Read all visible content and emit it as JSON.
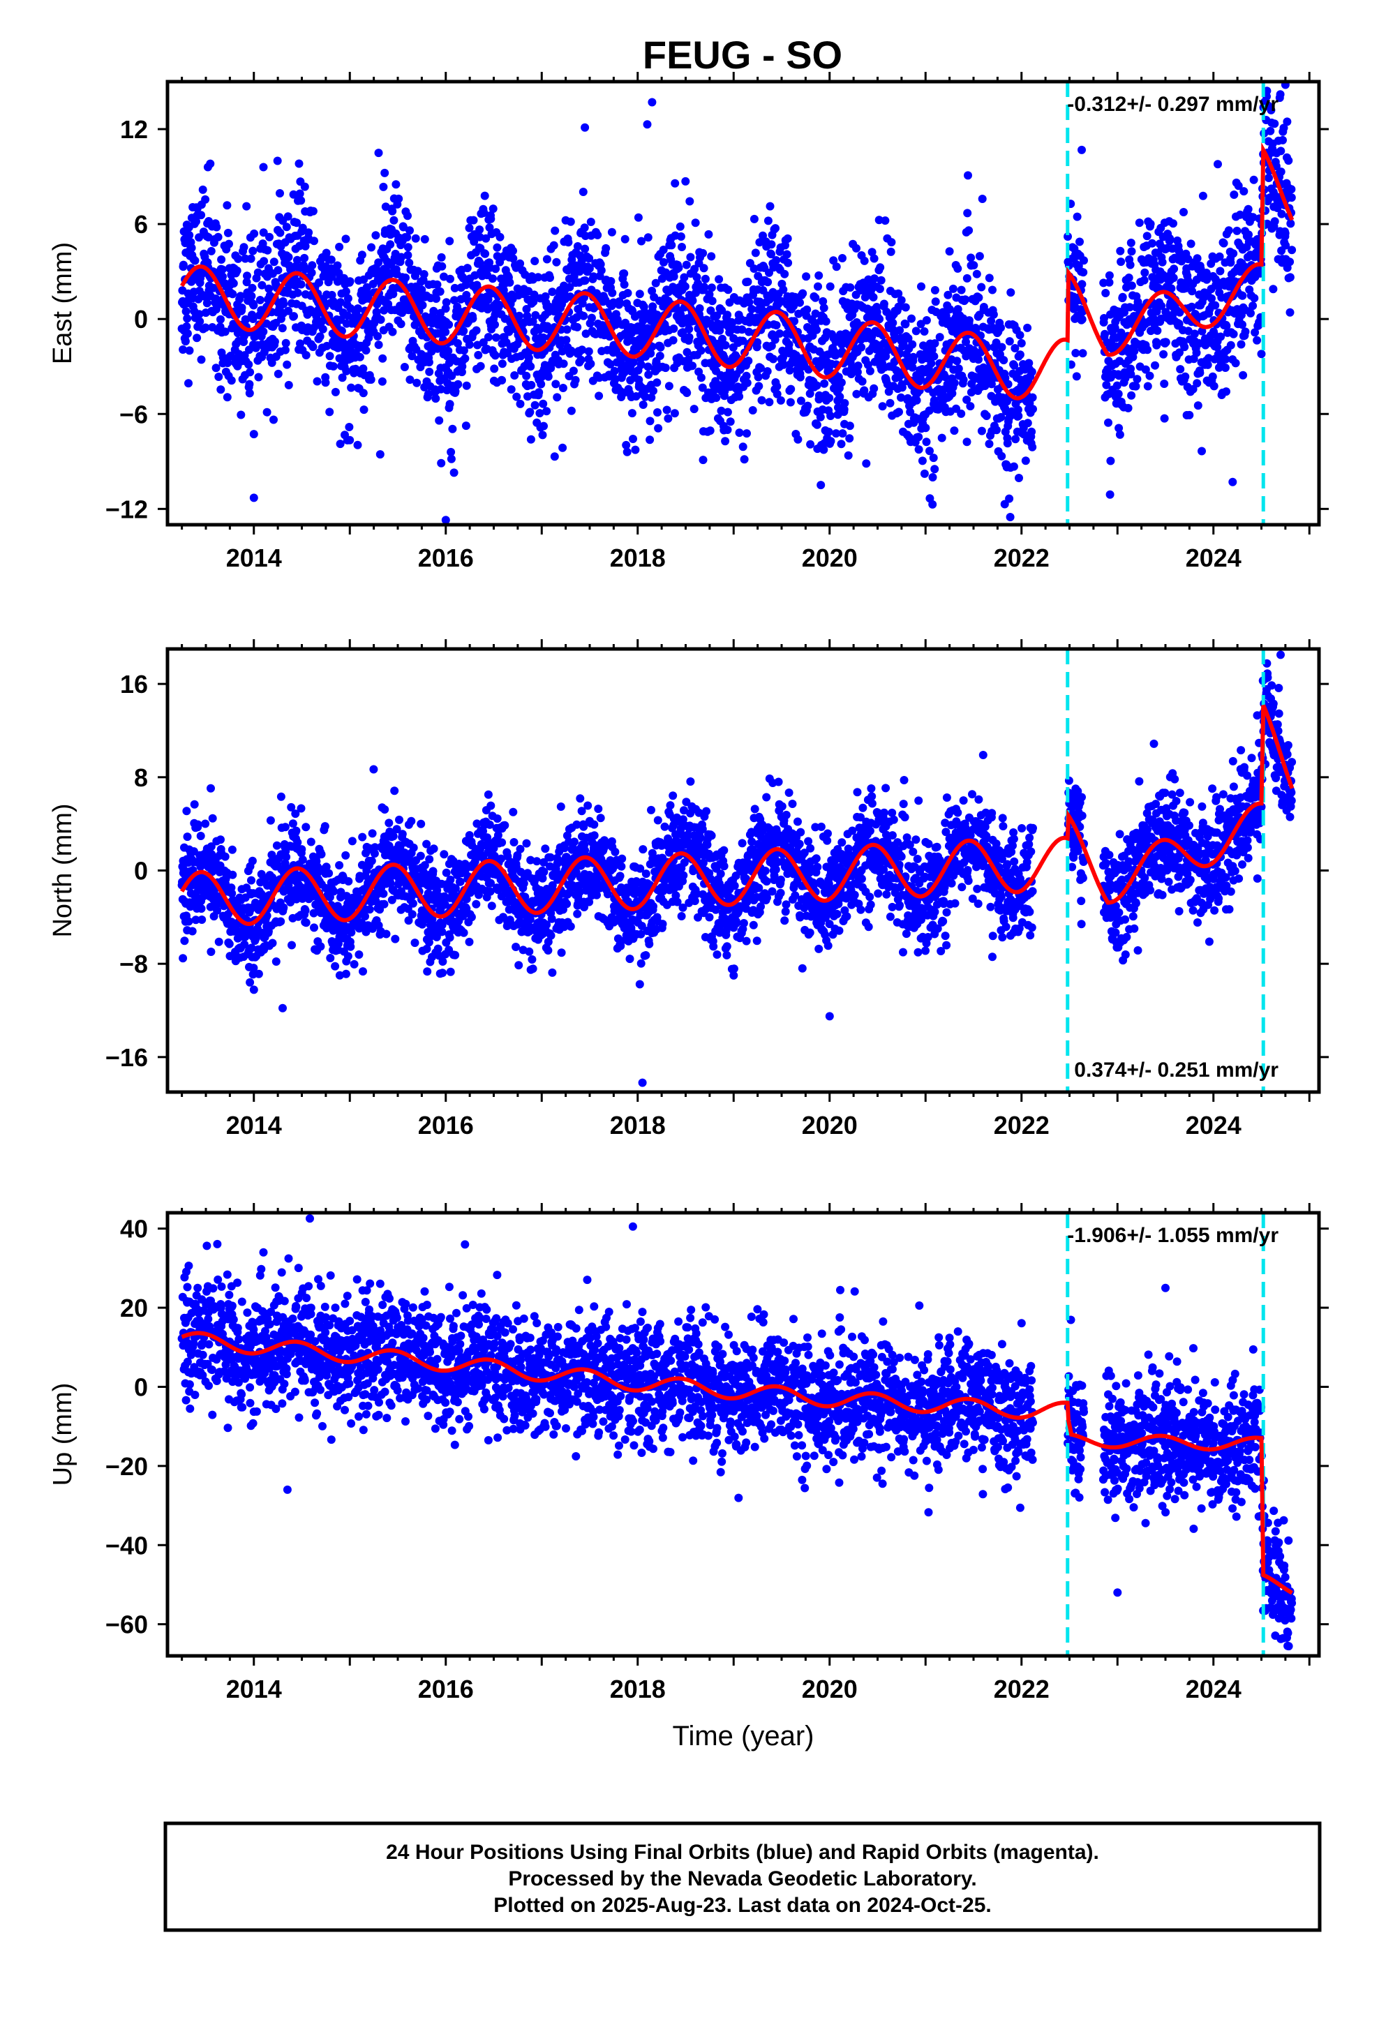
{
  "title": "FEUG - SO",
  "footer": {
    "lines": [
      "24 Hour Positions Using Final Orbits (blue) and Rapid Orbits (magenta).",
      "Processed by the Nevada Geodetic Laboratory.",
      "Plotted on 2025-Aug-23. Last data on 2024-Oct-25."
    ]
  },
  "colors": {
    "points": "#0000ff",
    "model": "#ff0000",
    "steps": "#00e5ee",
    "axes": "#000000"
  },
  "chart_data": [
    {
      "type": "scatter",
      "name": "east",
      "ylabel": "East (mm)",
      "rate_label": "-0.312+/- 0.297 mm/yr",
      "rate_position": "top-right",
      "xlim": [
        2013.1,
        2025.1
      ],
      "ylim": [
        -13,
        15
      ],
      "yticks": [
        -12,
        -6,
        0,
        6,
        12
      ],
      "ytick_labels": [
        "−12",
        "−6",
        "0",
        "6",
        "12"
      ],
      "xticks": [
        2014,
        2016,
        2018,
        2020,
        2022,
        2024
      ],
      "xtick_labels": [
        "2014",
        "2016",
        "2018",
        "2020",
        "2022",
        "2024"
      ],
      "data_start": 2013.25,
      "data_end": 2024.82,
      "gaps": [
        [
          2022.12,
          2022.48
        ],
        [
          2022.65,
          2022.85
        ]
      ],
      "trend": [
        [
          2013.25,
          1.5
        ],
        [
          2018.0,
          -0.5
        ],
        [
          2022.1,
          -3.2
        ]
      ],
      "seasonal_amplitude": 1.9,
      "scatter_sigma": 2.6,
      "post_step_model": [
        [
          2022.48,
          1.5
        ],
        [
          2022.9,
          -0.8
        ],
        [
          2024.5,
          2.0
        ],
        [
          2024.52,
          9.3
        ],
        [
          2024.82,
          7.3
        ]
      ],
      "offset_epochs": [
        2022.48,
        2024.52
      ],
      "outliers": [
        [
          2014.0,
          -11.3
        ],
        [
          2016.0,
          -12.7
        ],
        [
          2018.15,
          13.7
        ],
        [
          2018.1,
          12.3
        ],
        [
          2014.1,
          9.6
        ],
        [
          2015.3,
          10.5
        ],
        [
          2017.45,
          12.1
        ],
        [
          2024.75,
          14.8
        ],
        [
          2024.2,
          -10.3
        ]
      ]
    },
    {
      "type": "scatter",
      "name": "north",
      "ylabel": "North (mm)",
      "rate_label": "0.374+/- 0.251 mm/yr",
      "rate_position": "bottom-right",
      "xlim": [
        2013.1,
        2025.1
      ],
      "ylim": [
        -19,
        19
      ],
      "yticks": [
        -16,
        -8,
        0,
        8,
        16
      ],
      "ytick_labels": [
        "−16",
        "−8",
        "0",
        "8",
        "16"
      ],
      "xticks": [
        2014,
        2016,
        2018,
        2020,
        2022,
        2024
      ],
      "xtick_labels": [
        "2014",
        "2016",
        "2018",
        "2020",
        "2022",
        "2024"
      ],
      "data_start": 2013.25,
      "data_end": 2024.82,
      "gaps": [
        [
          2022.12,
          2022.48
        ],
        [
          2022.65,
          2022.85
        ]
      ],
      "trend": [
        [
          2013.25,
          -2.5
        ],
        [
          2018.0,
          -1.0
        ],
        [
          2022.1,
          0.5
        ]
      ],
      "seasonal_amplitude": 2.3,
      "scatter_sigma": 2.3,
      "post_step_model": [
        [
          2022.48,
          3.0
        ],
        [
          2022.9,
          -1.0
        ],
        [
          2024.5,
          4.0
        ],
        [
          2024.52,
          12.5
        ],
        [
          2024.82,
          8.3
        ]
      ],
      "offset_epochs": [
        2022.48,
        2024.52
      ],
      "outliers": [
        [
          2014.3,
          -11.8
        ],
        [
          2020.0,
          -12.5
        ],
        [
          2018.05,
          -18.2
        ],
        [
          2024.7,
          18.5
        ],
        [
          2019.0,
          -9.0
        ]
      ]
    },
    {
      "type": "scatter",
      "name": "up",
      "ylabel": "Up (mm)",
      "xlabel": "Time (year)",
      "rate_label": "-1.906+/- 1.055 mm/yr",
      "rate_position": "top-right",
      "xlim": [
        2013.1,
        2025.1
      ],
      "ylim": [
        -68,
        44
      ],
      "yticks": [
        -60,
        -40,
        -20,
        0,
        20,
        40
      ],
      "ytick_labels": [
        "−60",
        "−40",
        "−20",
        "0",
        "20",
        "40"
      ],
      "xticks": [
        2014,
        2016,
        2018,
        2020,
        2022,
        2024
      ],
      "xtick_labels": [
        "2014",
        "2016",
        "2018",
        "2020",
        "2022",
        "2024"
      ],
      "data_start": 2013.25,
      "data_end": 2024.82,
      "gaps": [
        [
          2022.12,
          2022.48
        ],
        [
          2022.65,
          2022.85
        ]
      ],
      "trend": [
        [
          2013.25,
          12.0
        ],
        [
          2016.0,
          6.0
        ],
        [
          2018.0,
          1.0
        ],
        [
          2020.0,
          -3.0
        ],
        [
          2022.1,
          -6.0
        ]
      ],
      "seasonal_amplitude": 2.0,
      "scatter_sigma": 7.5,
      "post_step_model": [
        [
          2022.48,
          -9.0
        ],
        [
          2022.52,
          -13.5
        ],
        [
          2024.5,
          -14.5
        ],
        [
          2024.52,
          -49.0
        ],
        [
          2024.82,
          -51.0
        ]
      ],
      "offset_epochs": [
        2022.48,
        2024.52
      ],
      "outliers": [
        [
          2017.95,
          40.5
        ],
        [
          2014.1,
          34.0
        ],
        [
          2014.35,
          -26.0
        ],
        [
          2023.0,
          -52.0
        ],
        [
          2023.5,
          25.0
        ],
        [
          2016.2,
          36.0
        ]
      ]
    }
  ]
}
